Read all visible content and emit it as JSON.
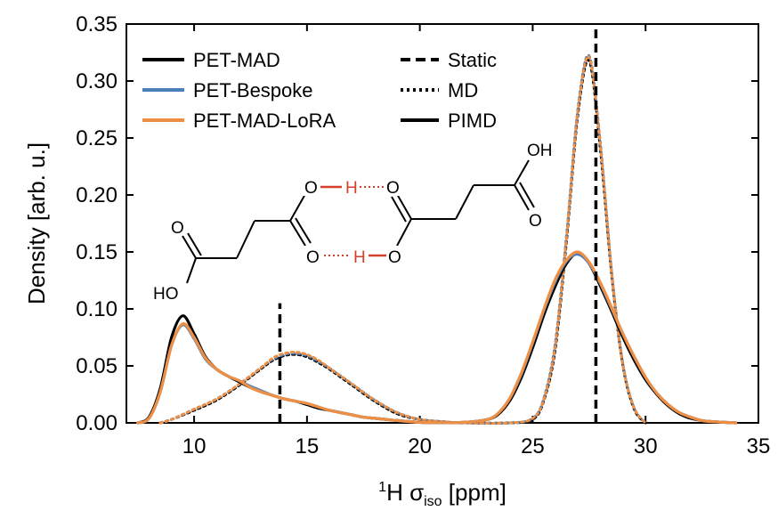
{
  "chart_data": {
    "type": "line",
    "title": "",
    "xlabel": "¹H σiso [ppm]",
    "xlabel_parts": {
      "sup": "1",
      "base": "H σ",
      "sub": "iso",
      "unit": " [ppm]"
    },
    "ylabel": "Density [arb. u.]",
    "xlim": [
      7,
      35
    ],
    "ylim": [
      0,
      0.35
    ],
    "x_ticks": [
      10,
      15,
      20,
      25,
      30,
      35
    ],
    "y_ticks": [
      0.0,
      0.05,
      0.1,
      0.15,
      0.2,
      0.25,
      0.3,
      0.35
    ],
    "x_tick_labels": [
      "10",
      "15",
      "20",
      "25",
      "30",
      "35"
    ],
    "y_tick_labels": [
      "0.00",
      "0.05",
      "0.10",
      "0.15",
      "0.20",
      "0.25",
      "0.30",
      "0.35"
    ],
    "grid": false,
    "legend_models": [
      {
        "name": "PET-MAD",
        "color": "#000000"
      },
      {
        "name": "PET-Bespoke",
        "color": "#4a7fb8"
      },
      {
        "name": "PET-MAD-LoRA",
        "color": "#ef8f44"
      }
    ],
    "legend_styles": [
      {
        "name": "Static",
        "dash": "dashed"
      },
      {
        "name": "MD",
        "dash": "dotted"
      },
      {
        "name": "PIMD",
        "dash": "solid"
      }
    ],
    "static_lines": [
      {
        "x": 13.8,
        "y_top": 0.105
      },
      {
        "x": 27.8,
        "y_top": 0.35
      }
    ],
    "series": [
      {
        "name": "PET-MAD",
        "method": "PIMD",
        "color": "#000000",
        "style": "solid",
        "x": [
          7.5,
          8.0,
          8.5,
          9.0,
          9.5,
          10.0,
          10.5,
          11.0,
          11.5,
          12.0,
          12.5,
          13.0,
          13.5,
          14.0,
          14.5,
          15.0,
          15.5,
          16.0,
          16.5,
          17.0,
          17.5,
          18.0,
          18.5,
          19.0,
          20.0,
          21.0,
          22.0,
          23.0,
          23.5,
          24.0,
          24.5,
          25.0,
          25.5,
          26.0,
          26.5,
          27.0,
          27.5,
          28.0,
          28.5,
          29.0,
          29.5,
          30.0,
          30.5,
          31.0,
          31.5,
          32.0,
          32.5,
          33.0,
          34.0
        ],
        "values": [
          0.0,
          0.005,
          0.03,
          0.075,
          0.094,
          0.078,
          0.058,
          0.047,
          0.041,
          0.036,
          0.031,
          0.027,
          0.024,
          0.021,
          0.019,
          0.016,
          0.013,
          0.011,
          0.009,
          0.007,
          0.005,
          0.004,
          0.003,
          0.002,
          0.0005,
          0.0002,
          0.0005,
          0.003,
          0.008,
          0.02,
          0.04,
          0.066,
          0.095,
          0.12,
          0.14,
          0.149,
          0.14,
          0.12,
          0.098,
          0.075,
          0.055,
          0.038,
          0.025,
          0.015,
          0.008,
          0.004,
          0.002,
          0.001,
          0.0
        ]
      },
      {
        "name": "PET-Bespoke",
        "method": "PIMD",
        "color": "#4a7fb8",
        "style": "solid",
        "x": [
          7.5,
          8.0,
          8.5,
          9.0,
          9.5,
          10.0,
          10.5,
          11.0,
          11.5,
          12.0,
          12.5,
          13.0,
          13.5,
          14.0,
          14.5,
          15.0,
          15.5,
          16.0,
          16.5,
          17.0,
          17.5,
          18.0,
          18.5,
          19.0,
          20.0,
          21.0,
          22.0,
          23.0,
          23.5,
          24.0,
          24.5,
          25.0,
          25.5,
          26.0,
          26.5,
          27.0,
          27.5,
          28.0,
          28.5,
          29.0,
          29.5,
          30.0,
          30.5,
          31.0,
          31.5,
          32.0,
          32.5,
          33.0,
          34.0
        ],
        "values": [
          0.0,
          0.004,
          0.027,
          0.068,
          0.086,
          0.074,
          0.056,
          0.047,
          0.041,
          0.037,
          0.032,
          0.028,
          0.024,
          0.021,
          0.019,
          0.017,
          0.014,
          0.011,
          0.009,
          0.007,
          0.005,
          0.004,
          0.003,
          0.002,
          0.0005,
          0.0002,
          0.0005,
          0.003,
          0.009,
          0.022,
          0.043,
          0.07,
          0.099,
          0.124,
          0.142,
          0.148,
          0.14,
          0.122,
          0.1,
          0.078,
          0.058,
          0.04,
          0.026,
          0.016,
          0.009,
          0.005,
          0.002,
          0.001,
          0.0
        ]
      },
      {
        "name": "PET-MAD-LoRA",
        "method": "PIMD",
        "color": "#ef8f44",
        "style": "solid",
        "x": [
          7.5,
          8.0,
          8.5,
          9.0,
          9.5,
          10.0,
          10.5,
          11.0,
          11.5,
          12.0,
          12.5,
          13.0,
          13.5,
          14.0,
          14.5,
          15.0,
          15.5,
          16.0,
          16.5,
          17.0,
          17.5,
          18.0,
          18.5,
          19.0,
          20.0,
          21.0,
          22.0,
          23.0,
          23.5,
          24.0,
          24.5,
          25.0,
          25.5,
          26.0,
          26.5,
          27.0,
          27.5,
          28.0,
          28.5,
          29.0,
          29.5,
          30.0,
          30.5,
          31.0,
          31.5,
          32.0,
          32.5,
          33.0,
          34.0
        ],
        "values": [
          0.0,
          0.004,
          0.027,
          0.068,
          0.087,
          0.075,
          0.057,
          0.047,
          0.041,
          0.037,
          0.031,
          0.027,
          0.024,
          0.021,
          0.019,
          0.017,
          0.014,
          0.011,
          0.009,
          0.007,
          0.005,
          0.004,
          0.003,
          0.002,
          0.0005,
          0.0002,
          0.0005,
          0.003,
          0.009,
          0.022,
          0.044,
          0.071,
          0.1,
          0.126,
          0.143,
          0.15,
          0.141,
          0.123,
          0.101,
          0.078,
          0.058,
          0.04,
          0.026,
          0.016,
          0.009,
          0.005,
          0.002,
          0.001,
          0.0
        ]
      },
      {
        "name": "PET-MAD",
        "method": "MD",
        "color": "#000000",
        "style": "dotted",
        "x": [
          8.5,
          9.0,
          10.0,
          11.0,
          12.0,
          13.0,
          13.5,
          14.0,
          14.5,
          15.0,
          15.5,
          16.0,
          17.0,
          18.0,
          19.0,
          20.0,
          21.0,
          22.0,
          24.0,
          25.0,
          25.5,
          26.0,
          26.5,
          27.0,
          27.5,
          28.0,
          28.5,
          29.0,
          29.5,
          30.0
        ],
        "values": [
          0.0,
          0.003,
          0.011,
          0.02,
          0.033,
          0.048,
          0.055,
          0.059,
          0.06,
          0.058,
          0.053,
          0.047,
          0.033,
          0.019,
          0.008,
          0.003,
          0.001,
          0.0,
          0.0,
          0.003,
          0.02,
          0.065,
          0.16,
          0.27,
          0.318,
          0.24,
          0.13,
          0.05,
          0.012,
          0.0
        ]
      },
      {
        "name": "PET-Bespoke",
        "method": "MD",
        "color": "#4a7fb8",
        "style": "dotted",
        "x": [
          8.5,
          9.0,
          10.0,
          11.0,
          12.0,
          13.0,
          13.5,
          14.0,
          14.5,
          15.0,
          15.5,
          16.0,
          17.0,
          18.0,
          19.0,
          20.0,
          21.0,
          22.0,
          24.0,
          25.0,
          25.5,
          26.0,
          26.5,
          27.0,
          27.5,
          28.0,
          28.5,
          29.0,
          29.5,
          30.0
        ],
        "values": [
          0.0,
          0.003,
          0.012,
          0.021,
          0.034,
          0.049,
          0.056,
          0.06,
          0.061,
          0.059,
          0.054,
          0.048,
          0.034,
          0.02,
          0.009,
          0.003,
          0.001,
          0.0,
          0.0,
          0.004,
          0.022,
          0.07,
          0.165,
          0.275,
          0.322,
          0.245,
          0.132,
          0.051,
          0.013,
          0.0
        ]
      },
      {
        "name": "PET-MAD-LoRA",
        "method": "MD",
        "color": "#ef8f44",
        "style": "dotted",
        "x": [
          8.5,
          9.0,
          10.0,
          11.0,
          12.0,
          13.0,
          13.5,
          14.0,
          14.5,
          15.0,
          15.5,
          16.0,
          17.0,
          18.0,
          19.0,
          20.0,
          21.0,
          22.0,
          24.0,
          25.0,
          25.5,
          26.0,
          26.5,
          27.0,
          27.5,
          28.0,
          28.5,
          29.0,
          29.5,
          30.0
        ],
        "values": [
          0.0,
          0.003,
          0.012,
          0.021,
          0.034,
          0.049,
          0.057,
          0.061,
          0.062,
          0.06,
          0.055,
          0.048,
          0.034,
          0.02,
          0.009,
          0.003,
          0.001,
          0.0,
          0.0,
          0.004,
          0.021,
          0.068,
          0.163,
          0.273,
          0.321,
          0.243,
          0.131,
          0.05,
          0.013,
          0.0
        ]
      }
    ]
  },
  "molecule": {
    "labels": [
      "O",
      "H",
      "O",
      "O",
      "O",
      "H",
      "O",
      "O",
      "OH",
      "O",
      "HO"
    ]
  }
}
